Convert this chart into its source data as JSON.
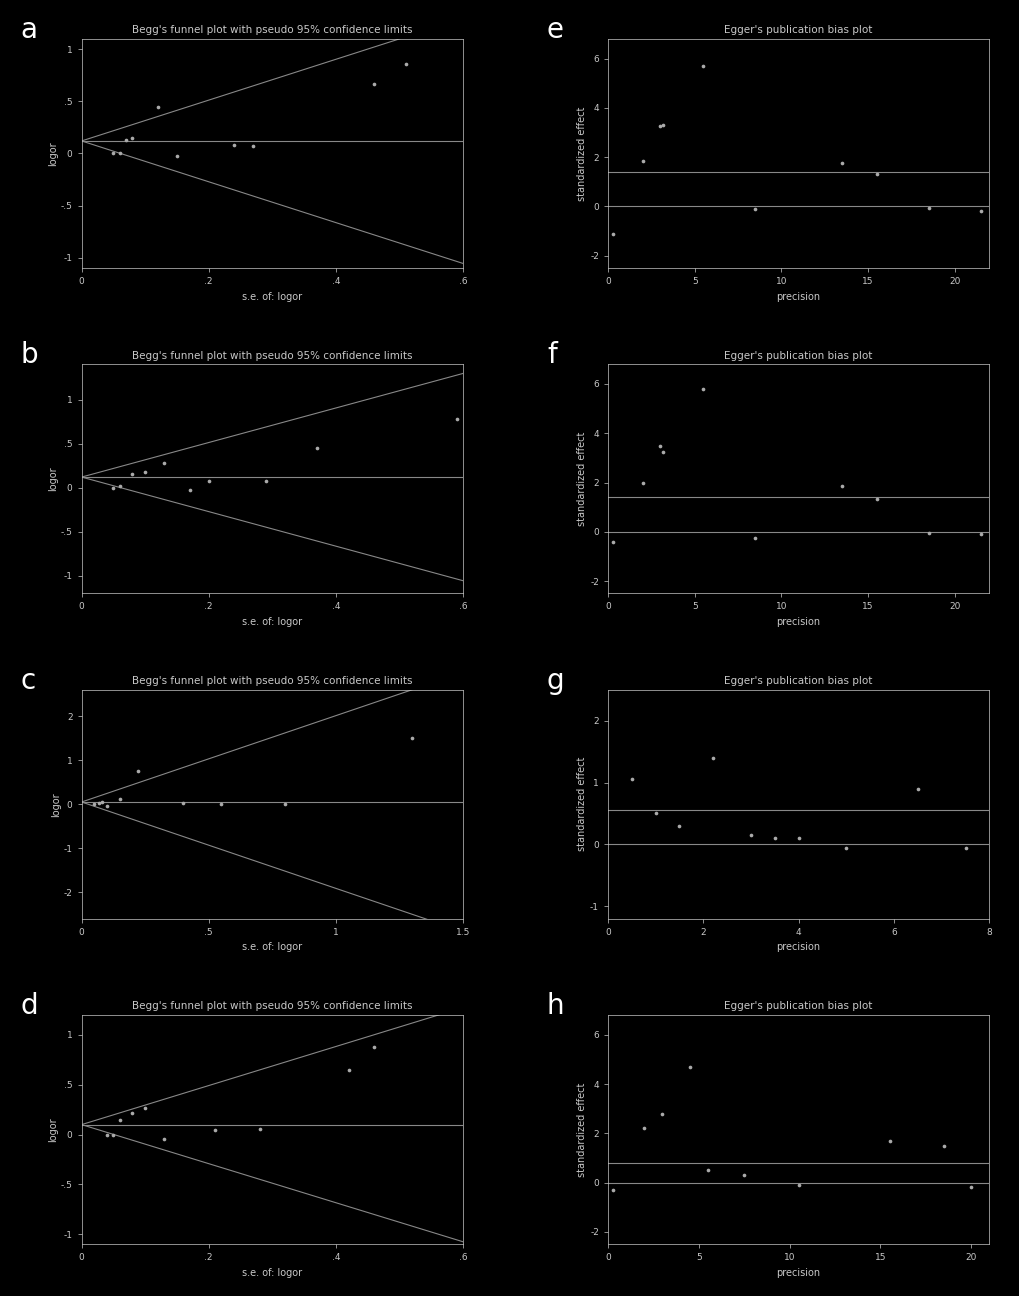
{
  "background_color": "#000000",
  "text_color": "#c8c8c8",
  "point_color": "#aaaaaa",
  "line_color": "#888888",
  "title_fontsize": 7.5,
  "label_fontsize": 7,
  "tick_fontsize": 6.5,
  "begg_title": "Begg's funnel plot with pseudo 95% confidence limits",
  "egger_title": "Egger's publication bias plot",
  "begg_xlabel": "s.e. of: logor",
  "begg_ylabel": "logor",
  "egger_xlabel": "precision",
  "egger_ylabel": "standardized effect",
  "begg_a": {
    "se": [
      0.05,
      0.06,
      0.07,
      0.08,
      0.12,
      0.15,
      0.24,
      0.27,
      0.46,
      0.51
    ],
    "logor": [
      0.0,
      0.0,
      0.13,
      0.15,
      0.45,
      -0.02,
      0.08,
      0.07,
      0.67,
      0.86
    ],
    "mean_logor": 0.12,
    "xlim": [
      0,
      0.6
    ],
    "ylim": [
      -1.1,
      1.1
    ],
    "xticks": [
      0,
      0.2,
      0.4,
      0.6
    ],
    "xticklabels": [
      "0",
      ".2",
      ".4",
      ".6"
    ],
    "yticks": [
      -1,
      -0.5,
      0,
      0.5,
      1
    ],
    "yticklabels": [
      "-1",
      "-.5",
      "0",
      ".5",
      "1"
    ]
  },
  "begg_b": {
    "se": [
      0.05,
      0.06,
      0.08,
      0.1,
      0.13,
      0.17,
      0.2,
      0.29,
      0.37,
      0.59
    ],
    "logor": [
      0.0,
      0.02,
      0.15,
      0.18,
      0.28,
      -0.03,
      0.07,
      0.07,
      0.45,
      0.78
    ],
    "mean_logor": 0.12,
    "xlim": [
      0,
      0.6
    ],
    "ylim": [
      -1.2,
      1.4
    ],
    "xticks": [
      0,
      0.2,
      0.4,
      0.6
    ],
    "xticklabels": [
      "0",
      ".2",
      ".4",
      ".6"
    ],
    "yticks": [
      -1,
      -0.5,
      0,
      0.5,
      1
    ],
    "yticklabels": [
      "-1",
      "-.5",
      "0",
      ".5",
      "1"
    ]
  },
  "begg_c": {
    "se": [
      0.05,
      0.07,
      0.08,
      0.1,
      0.15,
      0.22,
      0.4,
      0.55,
      0.8,
      1.3
    ],
    "logor": [
      0.0,
      0.02,
      0.05,
      -0.04,
      0.12,
      0.75,
      0.02,
      0.0,
      0.01,
      1.5
    ],
    "mean_logor": 0.05,
    "xlim": [
      0,
      1.5
    ],
    "ylim": [
      -2.6,
      2.6
    ],
    "xticks": [
      0,
      0.5,
      1.0,
      1.5
    ],
    "xticklabels": [
      "0",
      ".5",
      "1",
      "1.5"
    ],
    "yticks": [
      -2,
      -1,
      0,
      1,
      2
    ],
    "yticklabels": [
      "-2",
      "-1",
      "0",
      "1",
      "2"
    ]
  },
  "begg_d": {
    "se": [
      0.04,
      0.05,
      0.06,
      0.08,
      0.1,
      0.13,
      0.21,
      0.28,
      0.42,
      0.46
    ],
    "logor": [
      0.0,
      0.0,
      0.15,
      0.22,
      0.27,
      -0.04,
      0.05,
      0.06,
      0.65,
      0.88
    ],
    "mean_logor": 0.1,
    "xlim": [
      0,
      0.6
    ],
    "ylim": [
      -1.1,
      1.2
    ],
    "xticks": [
      0,
      0.2,
      0.4,
      0.6
    ],
    "xticklabels": [
      "0",
      ".2",
      ".4",
      ".6"
    ],
    "yticks": [
      -1,
      -0.5,
      0,
      0.5,
      1
    ],
    "yticklabels": [
      "-1",
      "-.5",
      "0",
      ".5",
      "1"
    ]
  },
  "egger_e": {
    "precision": [
      0.3,
      2.0,
      3.0,
      3.2,
      5.5,
      8.5,
      13.5,
      15.5,
      18.5,
      21.5
    ],
    "std_effect": [
      -1.1,
      1.85,
      3.25,
      3.3,
      5.7,
      -0.12,
      1.78,
      1.3,
      -0.07,
      -0.2
    ],
    "hline1": 0.0,
    "hline2": 1.4,
    "xlim": [
      0,
      22
    ],
    "ylim": [
      -2.5,
      6.8
    ],
    "xticks": [
      0,
      5,
      10,
      15,
      20
    ],
    "xticklabels": [
      "0",
      "5",
      "10",
      "15",
      "20"
    ],
    "yticks": [
      -2,
      0,
      2,
      4,
      6
    ],
    "yticklabels": [
      "-2",
      "0",
      "2",
      "4",
      "6"
    ]
  },
  "egger_f": {
    "precision": [
      0.3,
      2.0,
      3.0,
      3.2,
      5.5,
      8.5,
      13.5,
      15.5,
      18.5,
      21.5
    ],
    "std_effect": [
      -0.4,
      2.0,
      3.5,
      3.25,
      5.8,
      -0.25,
      1.85,
      1.35,
      -0.05,
      -0.1
    ],
    "hline1": 0.0,
    "hline2": 1.4,
    "xlim": [
      0,
      22
    ],
    "ylim": [
      -2.5,
      6.8
    ],
    "xticks": [
      0,
      5,
      10,
      15,
      20
    ],
    "xticklabels": [
      "0",
      "5",
      "10",
      "15",
      "20"
    ],
    "yticks": [
      -2,
      0,
      2,
      4,
      6
    ],
    "yticklabels": [
      "-2",
      "0",
      "2",
      "4",
      "6"
    ]
  },
  "egger_g": {
    "precision": [
      0.5,
      1.0,
      1.5,
      2.2,
      3.0,
      3.5,
      4.0,
      5.0,
      6.5,
      7.5
    ],
    "std_effect": [
      1.05,
      0.5,
      0.3,
      1.4,
      0.15,
      0.1,
      0.1,
      -0.05,
      0.9,
      -0.05
    ],
    "hline1": 0.0,
    "hline2": 0.55,
    "xlim": [
      0,
      8
    ],
    "ylim": [
      -1.2,
      2.5
    ],
    "xticks": [
      0,
      2,
      4,
      6,
      8
    ],
    "xticklabels": [
      "0",
      "2",
      "4",
      "6",
      "8"
    ],
    "yticks": [
      -1,
      0,
      1,
      2
    ],
    "yticklabels": [
      "-1",
      "0",
      "1",
      "2"
    ]
  },
  "egger_h": {
    "precision": [
      0.3,
      2.0,
      3.0,
      4.5,
      5.5,
      7.5,
      10.5,
      15.5,
      18.5,
      20.0
    ],
    "std_effect": [
      -0.3,
      2.2,
      2.8,
      4.7,
      0.5,
      0.3,
      -0.1,
      1.7,
      1.5,
      -0.2
    ],
    "hline1": 0.0,
    "hline2": 0.8,
    "xlim": [
      0,
      21
    ],
    "ylim": [
      -2.5,
      6.8
    ],
    "xticks": [
      0,
      5,
      10,
      15,
      20
    ],
    "xticklabels": [
      "0",
      "5",
      "10",
      "15",
      "20"
    ],
    "yticks": [
      -2,
      0,
      2,
      4,
      6
    ],
    "yticklabels": [
      "-2",
      "0",
      "2",
      "4",
      "6"
    ]
  }
}
